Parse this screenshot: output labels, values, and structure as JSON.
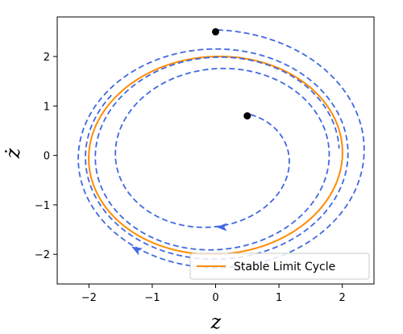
{
  "chart_data": {
    "type": "line",
    "title": "",
    "xlabel": "z",
    "ylabel": "ż",
    "xlim": [
      -2.5,
      2.5
    ],
    "ylim": [
      -2.6,
      2.8
    ],
    "xticks": [
      -2,
      -1,
      0,
      1,
      2
    ],
    "yticks": [
      -2,
      -1,
      0,
      1,
      2
    ],
    "xtick_labels": [
      "−2",
      "−1",
      "0",
      "1",
      "2"
    ],
    "ytick_labels": [
      "−2",
      "−1",
      "0",
      "1",
      "2"
    ],
    "grid": false,
    "legend": {
      "placement": "lower-right",
      "entries": [
        "Stable Limit Cycle"
      ]
    },
    "colors": {
      "limit_cycle": "#ff8c00",
      "trajectory": "#4169e1",
      "start_point": "#000000"
    },
    "series": [
      {
        "name": "Stable Limit Cycle",
        "style": "solid",
        "shape": "closed loop, semi-axes approx 2.0 (z) and 2.0 (z-dot)"
      },
      {
        "style": "dashed",
        "start": [
          0.5,
          0.8
        ],
        "direction": "spirals outward toward limit cycle",
        "arrow_at": [
          0.1,
          -1.45
        ]
      },
      {
        "style": "dashed",
        "start": [
          0.0,
          2.5
        ],
        "direction": "spirals inward toward limit cycle",
        "arrow_at": [
          -1.25,
          -1.9
        ]
      }
    ],
    "start_points": [
      [
        0.5,
        0.8
      ],
      [
        0.0,
        2.5
      ]
    ]
  }
}
